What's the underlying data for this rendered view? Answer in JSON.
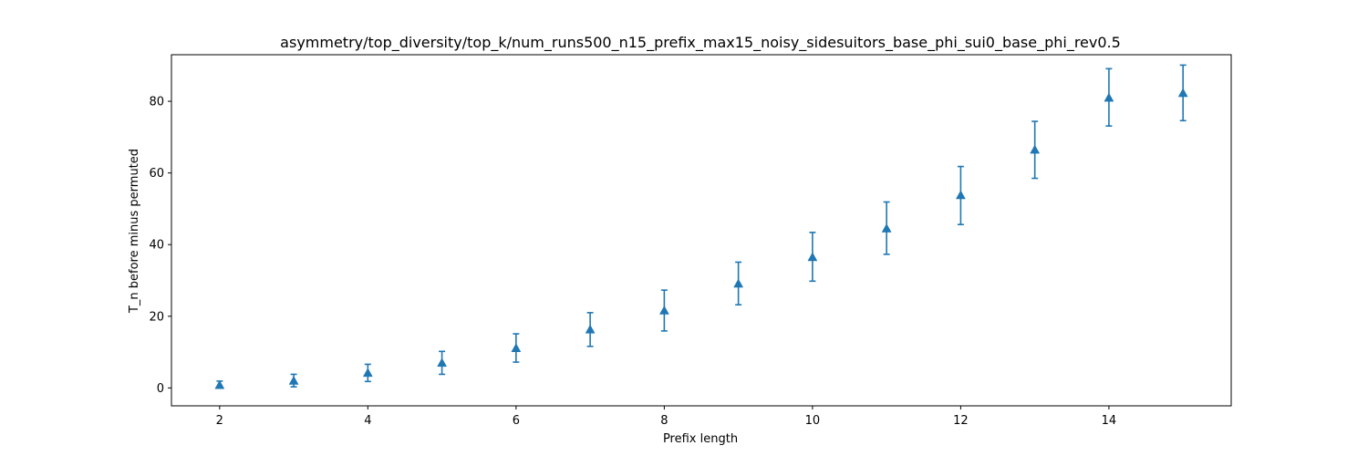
{
  "chart_data": {
    "type": "scatter",
    "title": "asymmetry/top_diversity/top_k/num_runs500_n15_prefix_max15_noisy_sidesuitors_base_phi_sui0_base_phi_rev0.5",
    "xlabel": "Prefix length",
    "ylabel": "T_n before minus permuted",
    "xlim": [
      1.35,
      15.65
    ],
    "ylim": [
      -5,
      93
    ],
    "xticks": [
      2,
      4,
      6,
      8,
      10,
      12,
      14
    ],
    "yticks": [
      0,
      20,
      40,
      60,
      80
    ],
    "grid": false,
    "marker": "triangle-up",
    "color": "#1f77b4",
    "series": [
      {
        "x": [
          2,
          3,
          4,
          5,
          6,
          7,
          8,
          9,
          10,
          11,
          12,
          13,
          14,
          15
        ],
        "y": [
          0.8,
          2.0,
          4.2,
          7.0,
          11.1,
          16.3,
          21.6,
          29.1,
          36.5,
          44.5,
          53.8,
          66.5,
          81.0,
          82.3
        ],
        "err_low": [
          0.0,
          0.3,
          1.8,
          3.8,
          7.2,
          11.6,
          15.9,
          23.2,
          29.8,
          37.3,
          45.6,
          58.5,
          73.1,
          74.6
        ],
        "err_high": [
          1.9,
          3.8,
          6.6,
          10.2,
          15.1,
          21.0,
          27.3,
          35.1,
          43.4,
          51.9,
          61.8,
          74.4,
          89.1,
          90.1
        ]
      }
    ]
  }
}
